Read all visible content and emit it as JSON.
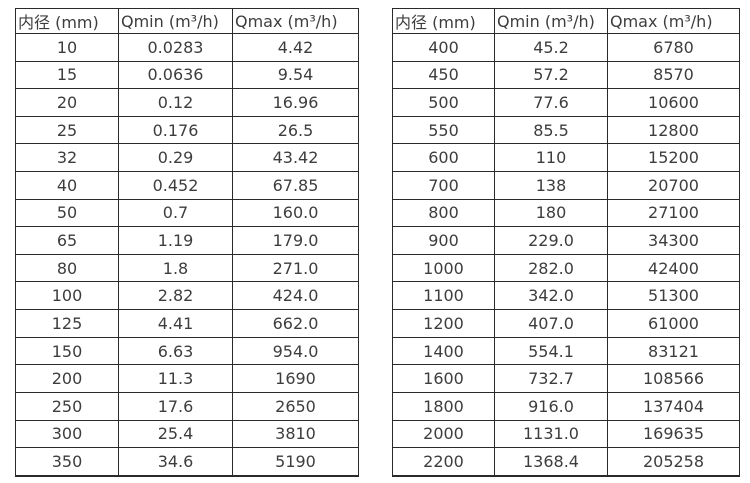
{
  "colors": {
    "background": "#ffffff",
    "text": "#3d3d3d",
    "border": "#2a2a2a"
  },
  "tables": [
    {
      "name": "flow-rates-small-diameters",
      "headers": [
        "内径 (mm)",
        "Qmin (m³/h)",
        "Qmax (m³/h)"
      ],
      "rows": [
        [
          "10",
          "0.0283",
          "4.42"
        ],
        [
          "15",
          "0.0636",
          "9.54"
        ],
        [
          "20",
          "0.12",
          "16.96"
        ],
        [
          "25",
          "0.176",
          "26.5"
        ],
        [
          "32",
          "0.29",
          "43.42"
        ],
        [
          "40",
          "0.452",
          "67.85"
        ],
        [
          "50",
          "0.7",
          "160.0"
        ],
        [
          "65",
          "1.19",
          "179.0"
        ],
        [
          "80",
          "1.8",
          "271.0"
        ],
        [
          "100",
          "2.82",
          "424.0"
        ],
        [
          "125",
          "4.41",
          "662.0"
        ],
        [
          "150",
          "6.63",
          "954.0"
        ],
        [
          "200",
          "11.3",
          "1690"
        ],
        [
          "250",
          "17.6",
          "2650"
        ],
        [
          "300",
          "25.4",
          "3810"
        ],
        [
          "350",
          "34.6",
          "5190"
        ]
      ]
    },
    {
      "name": "flow-rates-large-diameters",
      "headers": [
        "内径 (mm)",
        "Qmin (m³/h)",
        "Qmax (m³/h)"
      ],
      "rows": [
        [
          "400",
          "45.2",
          "6780"
        ],
        [
          "450",
          "57.2",
          "8570"
        ],
        [
          "500",
          "77.6",
          "10600"
        ],
        [
          "550",
          "85.5",
          "12800"
        ],
        [
          "600",
          "110",
          "15200"
        ],
        [
          "700",
          "138",
          "20700"
        ],
        [
          "800",
          "180",
          "27100"
        ],
        [
          "900",
          "229.0",
          "34300"
        ],
        [
          "1000",
          "282.0",
          "42400"
        ],
        [
          "1100",
          "342.0",
          "51300"
        ],
        [
          "1200",
          "407.0",
          "61000"
        ],
        [
          "1400",
          "554.1",
          "83121"
        ],
        [
          "1600",
          "732.7",
          "108566"
        ],
        [
          "1800",
          "916.0",
          "137404"
        ],
        [
          "2000",
          "1131.0",
          "169635"
        ],
        [
          "2200",
          "1368.4",
          "205258"
        ]
      ]
    }
  ]
}
